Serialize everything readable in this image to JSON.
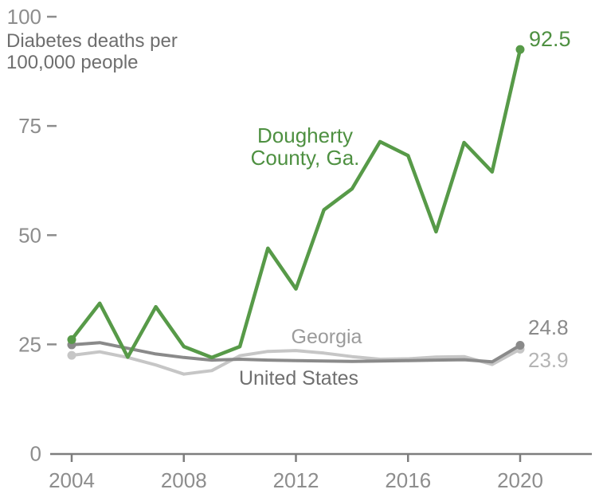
{
  "chart_data": {
    "type": "line",
    "title": "",
    "ylabel_lines": [
      "Diabetes deaths per",
      "100,000 people"
    ],
    "xlabel": "",
    "x": [
      2004,
      2005,
      2006,
      2007,
      2008,
      2009,
      2010,
      2011,
      2012,
      2013,
      2014,
      2015,
      2016,
      2017,
      2018,
      2019,
      2020
    ],
    "x_tick_labels": [
      "2004",
      "2008",
      "2012",
      "2016",
      "2020"
    ],
    "x_tick_years": [
      2004,
      2008,
      2012,
      2016,
      2020
    ],
    "y_tick_labels": [
      "0",
      "25",
      "50",
      "75",
      "100"
    ],
    "y_tick_values": [
      0,
      25,
      50,
      75,
      100
    ],
    "ylim": [
      0,
      100
    ],
    "xlim": [
      2004,
      2020
    ],
    "grid": "off",
    "legend": "inline-labels",
    "axis_color": "#7d7d7d",
    "tick_text_color": "#8d8d8d",
    "ylabel_color": "#6e6e6e",
    "series": [
      {
        "name": "Dougherty County, Ga.",
        "label_lines": [
          "Dougherty",
          "County, Ga."
        ],
        "color": "#579a48",
        "label_color": "#4e9041",
        "end_value_label": "92.5",
        "end_value_color": "#4e9041",
        "values": [
          26.1,
          34.4,
          22.1,
          33.6,
          24.5,
          22.0,
          24.5,
          47.0,
          37.7,
          55.8,
          60.6,
          71.4,
          68.2,
          50.8,
          71.2,
          64.5,
          92.5
        ]
      },
      {
        "name": "Georgia",
        "label_lines": [
          "Georgia"
        ],
        "color": "#c6c6c6",
        "label_color": "#9b9b9b",
        "end_value_label": "23.9",
        "end_value_color": "#b4b4b4",
        "values": [
          22.5,
          23.3,
          22.0,
          20.3,
          18.2,
          19.0,
          22.4,
          23.4,
          23.6,
          23.0,
          22.2,
          21.6,
          21.7,
          22.1,
          22.2,
          20.4,
          23.9
        ]
      },
      {
        "name": "United States",
        "label_lines": [
          "United States"
        ],
        "color": "#8a8a8a",
        "label_color": "#6f6f6f",
        "end_value_label": "24.8",
        "end_value_color": "#8a8a8a",
        "values": [
          24.9,
          25.4,
          24.1,
          22.8,
          22.0,
          21.4,
          21.6,
          21.4,
          21.3,
          21.2,
          21.1,
          21.2,
          21.3,
          21.4,
          21.5,
          21.0,
          24.8
        ]
      }
    ]
  }
}
